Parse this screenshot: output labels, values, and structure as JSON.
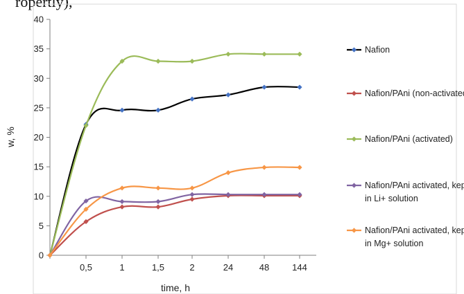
{
  "page": {
    "top_text": "ropertly),"
  },
  "chart_data": {
    "type": "line",
    "xlabel": "time, h",
    "ylabel": "w, %",
    "ylim": [
      0,
      40
    ],
    "y_ticks": [
      0,
      5,
      10,
      15,
      20,
      25,
      30,
      35,
      40
    ],
    "categories": [
      "",
      "0,5",
      "1",
      "1,5",
      "2",
      "24",
      "48",
      "144"
    ],
    "grid": false,
    "legend_position": "right",
    "series": [
      {
        "name": "Nafion",
        "color": "#000000",
        "marker_color": "#4472c4",
        "values": [
          0,
          22.2,
          24.6,
          24.6,
          26.5,
          27.2,
          28.5,
          28.5
        ]
      },
      {
        "name": "Nafion/PAni (non-activated)",
        "color": "#c0504d",
        "marker_color": "#c0504d",
        "values": [
          0,
          5.7,
          8.2,
          8.2,
          9.5,
          10.1,
          10.1,
          10.1
        ]
      },
      {
        "name": "Nafion/PAni (activated)",
        "color": "#9bbb59",
        "marker_color": "#9bbb59",
        "values": [
          0,
          22.0,
          32.9,
          32.9,
          32.9,
          34.1,
          34.1,
          34.1
        ]
      },
      {
        "name": "Nafion/PAni activated, kept in Li+ solution",
        "color": "#8064a2",
        "marker_color": "#8064a2",
        "values": [
          0,
          9.2,
          9.1,
          9.1,
          10.3,
          10.3,
          10.3,
          10.3
        ]
      },
      {
        "name": "Nafion/PAni activated, kept in Mg+ solution",
        "color": "#f79646",
        "marker_color": "#f79646",
        "values": [
          0,
          7.8,
          11.4,
          11.4,
          11.4,
          14.0,
          14.9,
          14.9
        ]
      }
    ],
    "legend": [
      {
        "line1": "Nafion",
        "line2": ""
      },
      {
        "line1": "Nafion/PAni (non-activated)",
        "line2": ""
      },
      {
        "line1": "Nafion/PAni (activated)",
        "line2": ""
      },
      {
        "line1": "Nafion/PAni activated, kept",
        "line2": "in Li+ solution"
      },
      {
        "line1": "Nafion/PAni activated, kept",
        "line2": "in Mg+ solution"
      }
    ]
  }
}
